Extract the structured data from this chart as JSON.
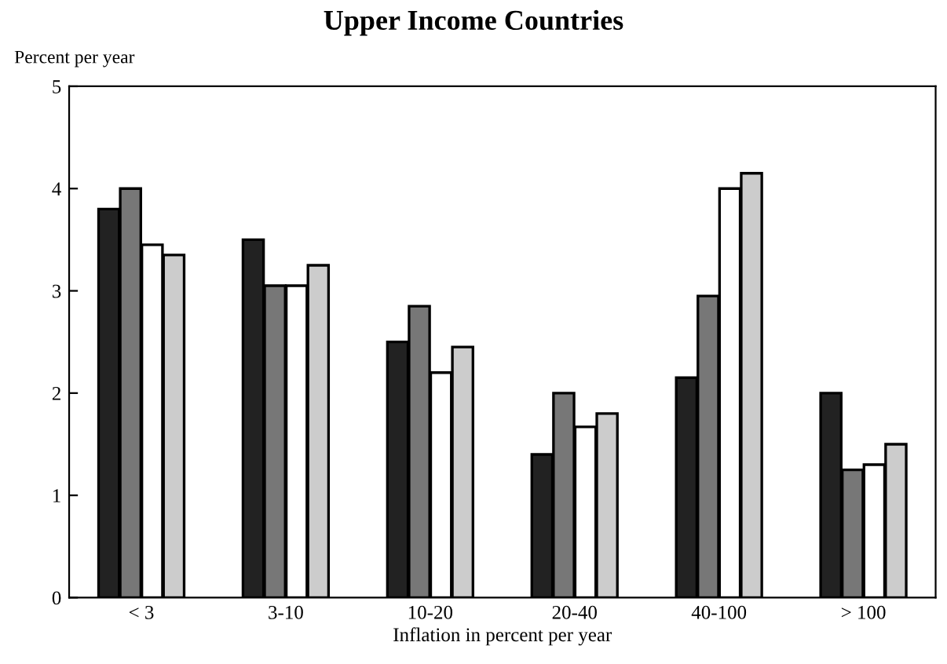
{
  "chart_data": {
    "type": "bar",
    "title": "Upper Income Countries",
    "ylabel": "Percent per year",
    "xlabel": "Inflation in percent per year",
    "categories": [
      "< 3",
      "3-10",
      "10-20",
      "20-40",
      "40-100",
      "> 100"
    ],
    "series": [
      {
        "color": "#222222",
        "values": [
          3.8,
          3.5,
          2.5,
          1.4,
          2.15,
          2.0
        ]
      },
      {
        "color": "#777777",
        "values": [
          4.0,
          3.05,
          2.85,
          2.0,
          2.95,
          1.25
        ]
      },
      {
        "color": "#ffffff",
        "values": [
          3.45,
          3.05,
          2.2,
          1.67,
          4.0,
          1.3
        ]
      },
      {
        "color": "#cccccc",
        "values": [
          3.35,
          3.25,
          2.45,
          1.8,
          4.15,
          1.5
        ]
      }
    ],
    "ylim": [
      0,
      5
    ],
    "yticks": [
      0,
      1,
      2,
      3,
      4,
      5
    ],
    "grid": false,
    "legend": false
  }
}
